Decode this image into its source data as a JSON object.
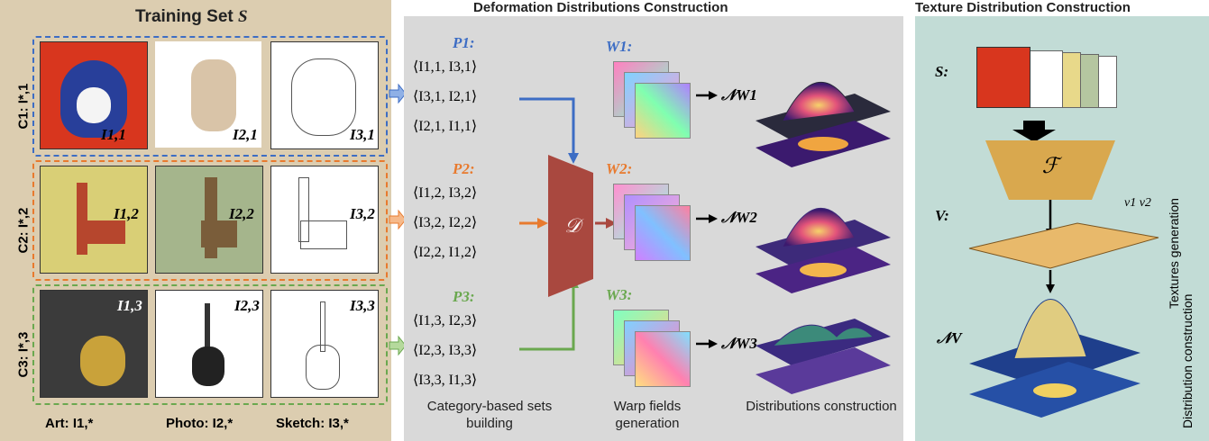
{
  "training": {
    "title": "Training Set",
    "title_symbol": "S",
    "rows": [
      {
        "label": "C1: I*,1",
        "color": "#3d6dc4",
        "captions": [
          "I1,1",
          "I2,1",
          "I3,1"
        ]
      },
      {
        "label": "C2: I*,2",
        "color": "#e87a2e",
        "captions": [
          "I1,2",
          "I2,2",
          "I3,2"
        ]
      },
      {
        "label": "C3: I*,3",
        "color": "#6aa84f",
        "captions": [
          "I1,3",
          "I2,3",
          "I3,3"
        ]
      }
    ],
    "footer": [
      "Art: I1,*",
      "Photo: I2,*",
      "Sketch: I3,*"
    ]
  },
  "deformation": {
    "title": "Deformation Distributions Construction",
    "sets": [
      {
        "name": "P1:",
        "lines": [
          "⟨I1,1, I3,1⟩",
          "⟨I3,1, I2,1⟩",
          "⟨I2,1, I1,1⟩"
        ]
      },
      {
        "name": "P2:",
        "lines": [
          "⟨I1,2, I3,2⟩",
          "⟨I3,2, I2,2⟩",
          "⟨I2,2, I1,2⟩"
        ]
      },
      {
        "name": "P3:",
        "lines": [
          "⟨I1,3, I2,3⟩",
          "⟨I2,3, I3,3⟩",
          "⟨I3,3, I1,3⟩"
        ]
      }
    ],
    "network": "𝒟",
    "warps": [
      "W1:",
      "W2:",
      "W3:"
    ],
    "dists": [
      "𝒩W1",
      "𝒩W2",
      "𝒩W3"
    ],
    "captions": [
      "Category-based sets building",
      "Warp fields generation",
      "Distributions construction"
    ]
  },
  "texture": {
    "title": "Texture Distribution Construction",
    "s_label": "S:",
    "network": "ℱ",
    "v_label": "V:",
    "v_marks": "v1 v2",
    "n_label": "𝒩V",
    "side_labels": [
      "Textures generation",
      "Distribution construction"
    ]
  },
  "colors": {
    "blue": "#3d6dc4",
    "orange": "#e87a2e",
    "green": "#6aa84f",
    "decoder": "#a9483f",
    "encoder": "#d9a84e"
  }
}
